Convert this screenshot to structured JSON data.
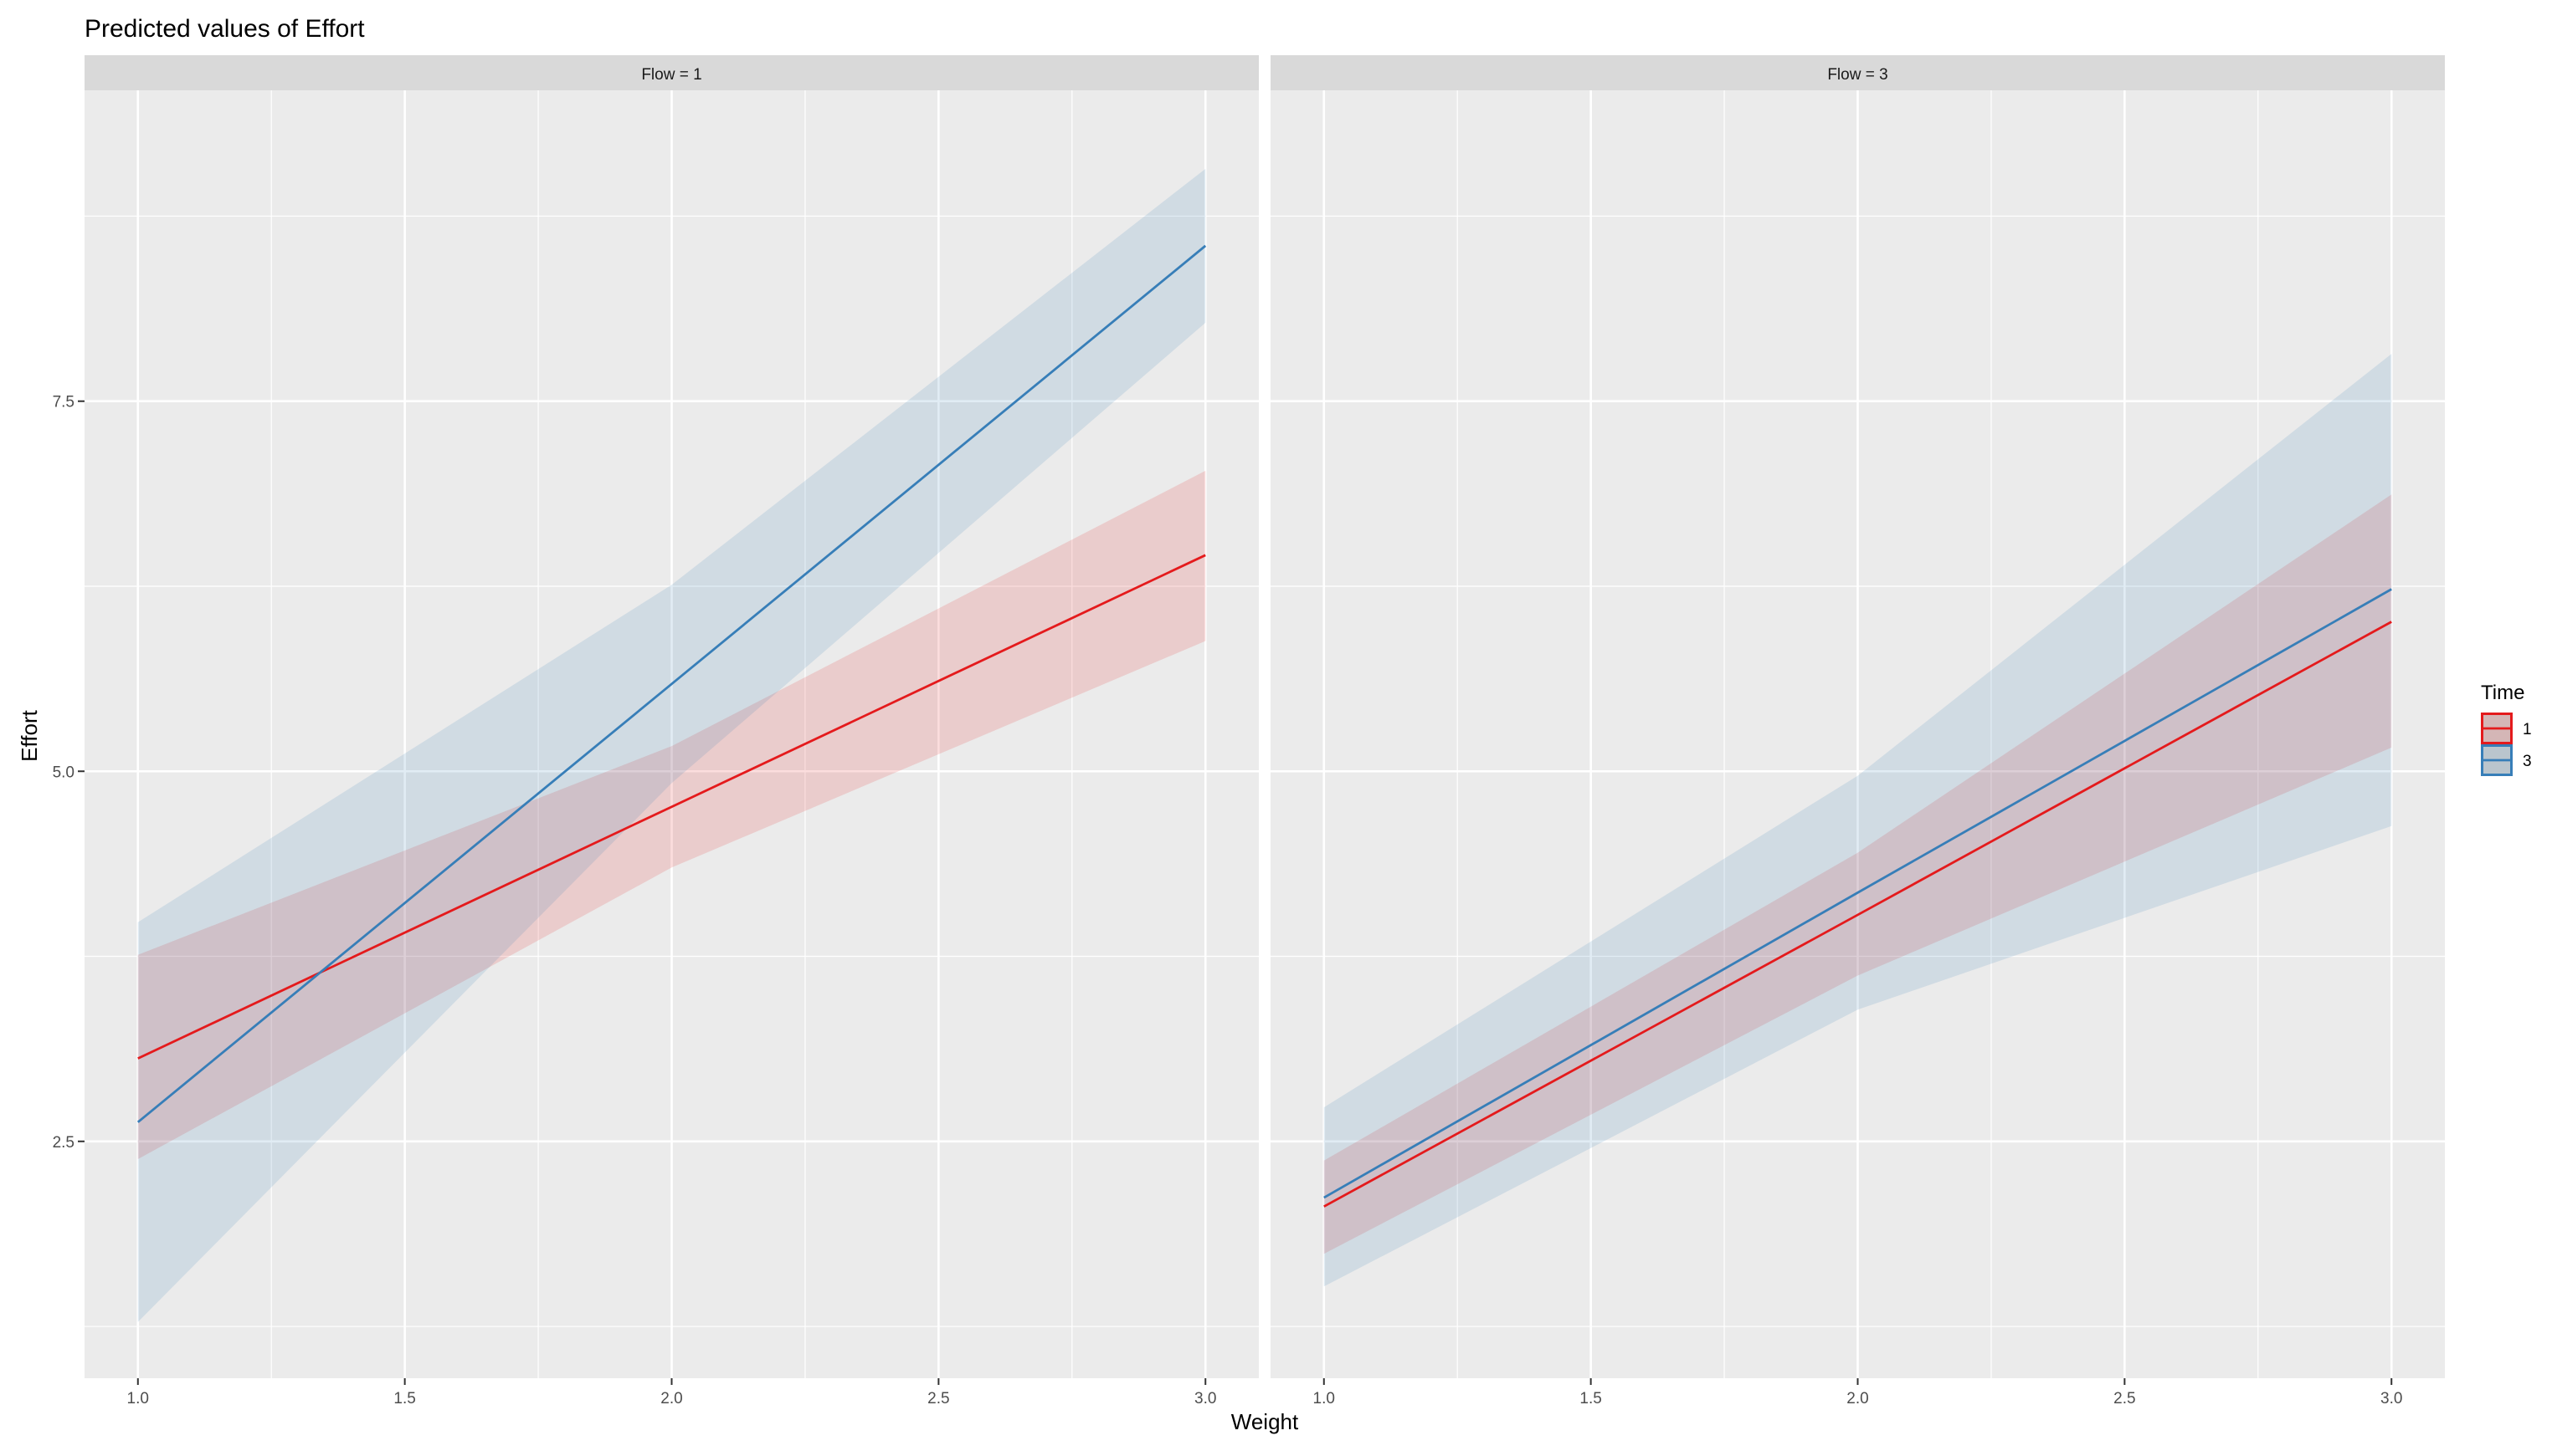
{
  "chart_data": {
    "type": "line",
    "title": "Predicted values of Effort",
    "xlabel": "Weight",
    "ylabel": "Effort",
    "xlim": [
      0.9,
      3.1
    ],
    "ylim": [
      0.9,
      9.6
    ],
    "x_ticks": [
      1.0,
      1.5,
      2.0,
      2.5,
      3.0
    ],
    "x_tick_labels": [
      "1.0",
      "1.5",
      "2.0",
      "2.5",
      "3.0"
    ],
    "y_ticks": [
      2.5,
      5.0,
      7.5
    ],
    "y_tick_labels": [
      "2.5",
      "5.0",
      "7.5"
    ],
    "grid": true,
    "legend": {
      "title": "Time",
      "placement": "right",
      "entries": [
        {
          "label": "1",
          "color": "#E41A1C"
        },
        {
          "label": "3",
          "color": "#377EB8"
        }
      ]
    },
    "band_fill_opacity": 0.15,
    "panels": [
      {
        "strip": "Flow = 1",
        "series": [
          {
            "legend_label": "1",
            "color": "#E41A1C",
            "x": [
              1.0,
              2.0,
              3.0
            ],
            "y": [
              3.06,
              4.76,
              6.46
            ],
            "lower": [
              2.38,
              4.35,
              5.88
            ],
            "upper": [
              3.76,
              5.17,
              7.03
            ]
          },
          {
            "legend_label": "3",
            "color": "#377EB8",
            "x": [
              1.0,
              2.0,
              3.0
            ],
            "y": [
              2.63,
              5.59,
              8.55
            ],
            "lower": [
              1.28,
              4.92,
              8.03
            ],
            "upper": [
              3.98,
              6.26,
              9.07
            ]
          }
        ]
      },
      {
        "strip": "Flow = 3",
        "series": [
          {
            "legend_label": "1",
            "color": "#E41A1C",
            "x": [
              1.0,
              2.0,
              3.0
            ],
            "y": [
              2.06,
              4.03,
              6.01
            ],
            "lower": [
              1.74,
              3.62,
              5.16
            ],
            "upper": [
              2.37,
              4.45,
              6.87
            ]
          },
          {
            "legend_label": "3",
            "color": "#377EB8",
            "x": [
              1.0,
              2.0,
              3.0
            ],
            "y": [
              2.12,
              4.18,
              6.23
            ],
            "lower": [
              1.52,
              3.39,
              4.63
            ],
            "upper": [
              2.73,
              4.97,
              7.82
            ]
          }
        ]
      }
    ]
  }
}
